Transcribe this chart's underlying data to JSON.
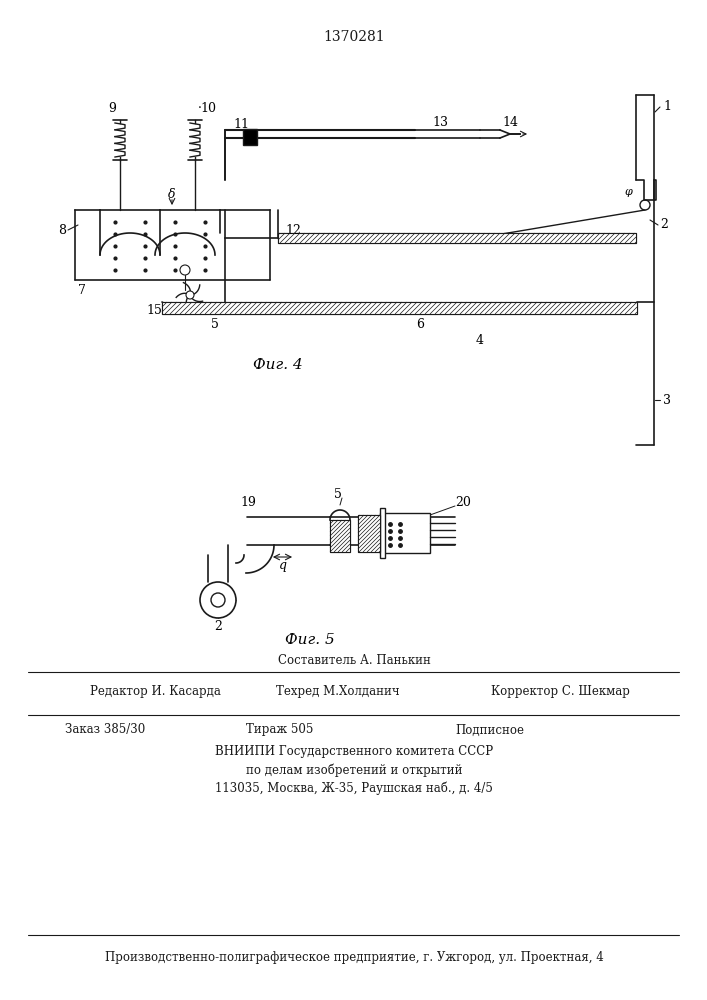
{
  "patent_number": "1370281",
  "fig4_caption": "Фиг. 4",
  "fig5_caption": "Фиг. 5",
  "footer_line1": "Составитель А. Панькин",
  "footer_line2_left": "Редактор И. Касарда",
  "footer_line2_mid": "Техред М.Холданич",
  "footer_line2_right": "Корректор С. Шекмар",
  "footer_line3_left": "Заказ 385/30",
  "footer_line3_mid": "Тираж 505",
  "footer_line3_right": "Подписное",
  "footer_line4": "ВНИИПИ Государственного комитета СССР",
  "footer_line5": "по делам изобретений и открытий",
  "footer_line6": "113035, Москва, Ж-35, Раушская наб., д. 4/5",
  "footer_line7": "Производственно-полиграфическое предприятие, г. Ужгород, ул. Проектная, 4",
  "bg_color": "#ffffff",
  "line_color": "#1a1a1a"
}
